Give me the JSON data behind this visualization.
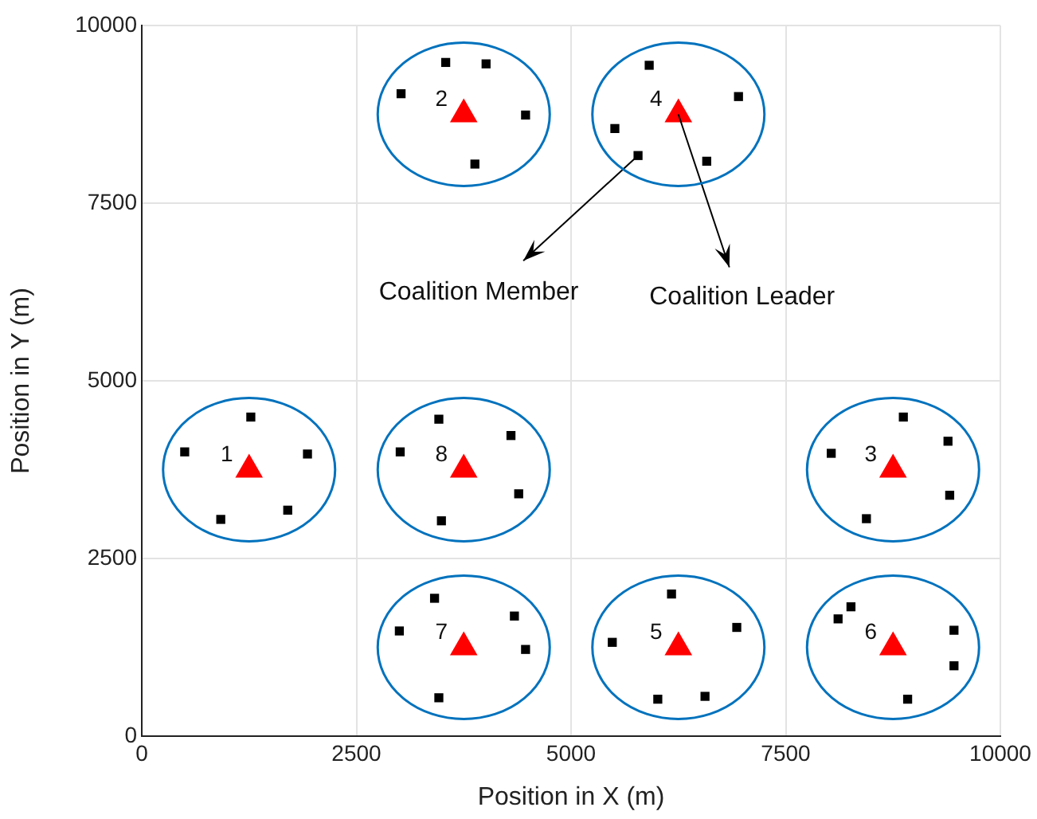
{
  "chart_data": {
    "type": "scatter",
    "xlabel": "Position in X (m)",
    "ylabel": "Position in Y (m)",
    "xlim": [
      0,
      10000
    ],
    "ylim": [
      0,
      10000
    ],
    "xticks": [
      0,
      2500,
      5000,
      7500,
      10000
    ],
    "yticks": [
      0,
      2500,
      5000,
      7500,
      10000
    ],
    "grid": true,
    "legend": false,
    "series": [
      {
        "type": "scatter",
        "marker": "square",
        "color": "#000000",
        "x": [
          1270,
          500,
          1930,
          1700,
          920,
          3020,
          3540,
          4010,
          4470,
          3880,
          8870,
          9390,
          8030,
          9410,
          8440,
          5910,
          6950,
          5510,
          5780,
          6580,
          6170,
          6930,
          5480,
          6560,
          6010,
          8260,
          8110,
          9460,
          9460,
          8920,
          3410,
          4340,
          3000,
          4470,
          3460,
          3460,
          4300,
          3010,
          4390,
          3490
        ],
        "values": [
          4490,
          4000,
          3970,
          3180,
          3050,
          9040,
          9480,
          9460,
          8740,
          8050,
          4490,
          4150,
          3980,
          3390,
          3060,
          9440,
          9000,
          8550,
          8170,
          8090,
          2000,
          1530,
          1320,
          560,
          520,
          1820,
          1650,
          1490,
          990,
          520,
          1940,
          1690,
          1480,
          1220,
          540,
          4460,
          4230,
          4000,
          3410,
          3030
        ]
      },
      {
        "type": "scatter",
        "marker": "triangle",
        "color": "#ff0000",
        "x": [
          1250,
          3750,
          8750,
          6250,
          6250,
          8750,
          3750,
          3750
        ],
        "values": [
          3750,
          8750,
          3750,
          8750,
          1250,
          1250,
          1250,
          3750
        ]
      }
    ],
    "annotations": [
      {
        "text": "1",
        "x": 1250,
        "y": 3750
      },
      {
        "text": "2",
        "x": 3750,
        "y": 8750
      },
      {
        "text": "3",
        "x": 8750,
        "y": 3750
      },
      {
        "text": "4",
        "x": 6250,
        "y": 8750
      },
      {
        "text": "5",
        "x": 6250,
        "y": 1250
      },
      {
        "text": "6",
        "x": 8750,
        "y": 1250
      },
      {
        "text": "7",
        "x": 3750,
        "y": 1250
      },
      {
        "text": "8",
        "x": 3750,
        "y": 3750
      },
      {
        "text": "Coalition Member",
        "x": 5780,
        "y": 8170
      },
      {
        "text": "Coalition Leader",
        "x": 6250,
        "y": 8750
      }
    ]
  }
}
